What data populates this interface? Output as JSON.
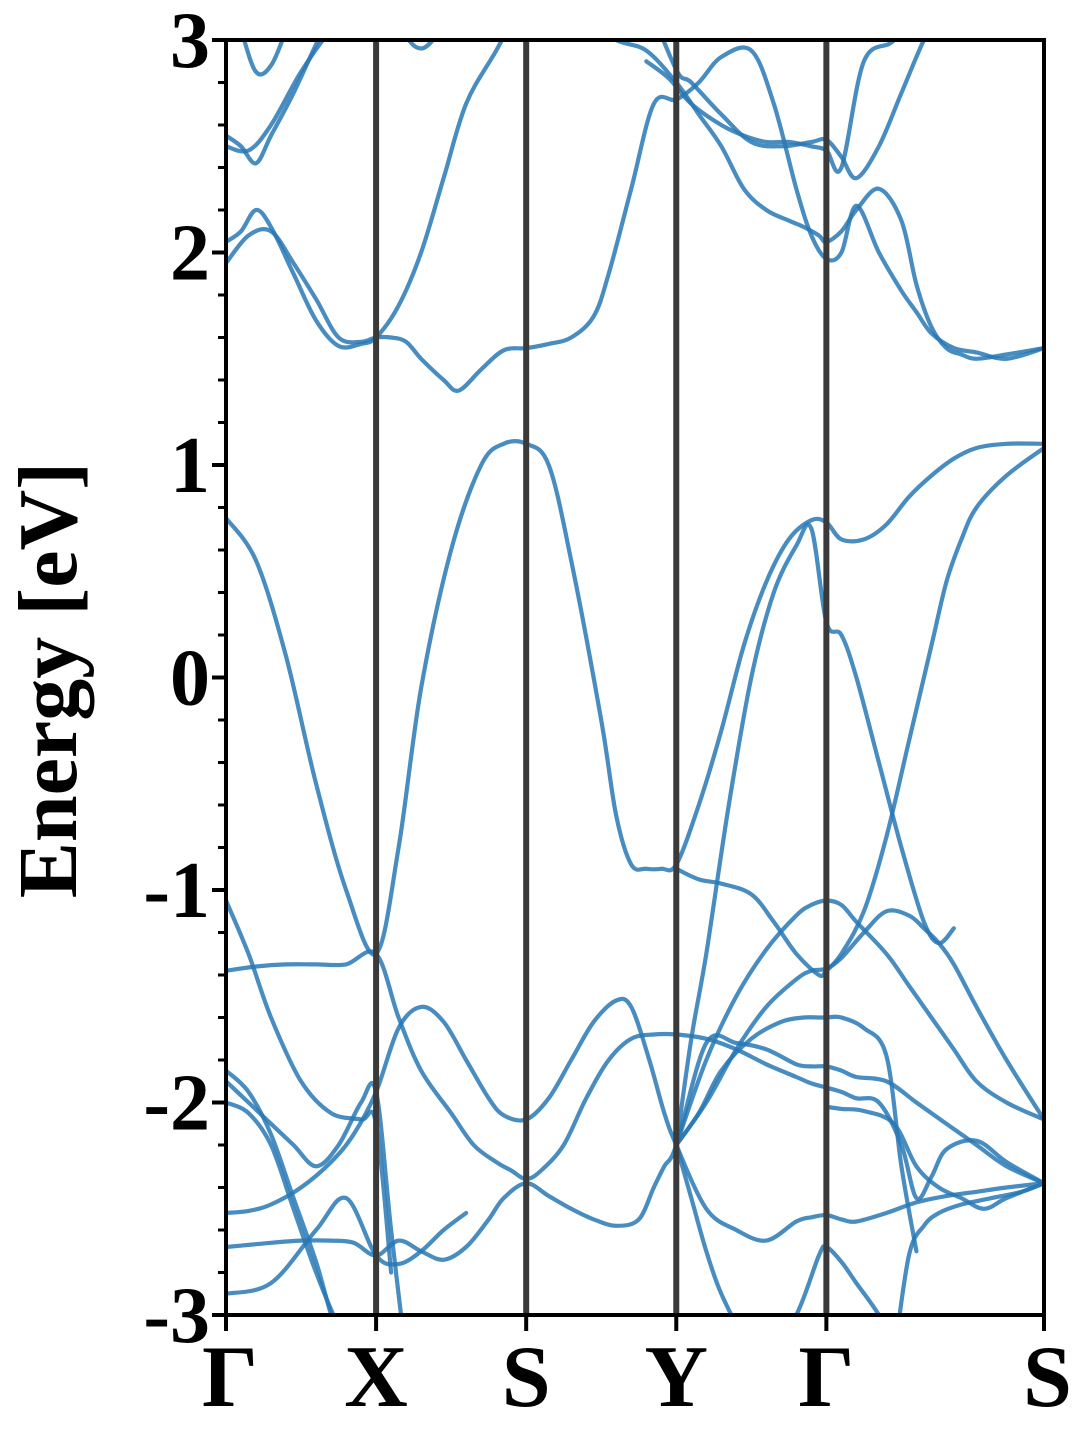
{
  "chart_data": {
    "type": "line",
    "title": "",
    "ylabel": "Energy [eV]",
    "xlabel": "",
    "ylim": [
      -3,
      3
    ],
    "yticks": [
      -3,
      -2,
      -1,
      0,
      1,
      2,
      3
    ],
    "ytick_labels": [
      "-3",
      "-2",
      "-1",
      "0",
      "1",
      "2",
      "3"
    ],
    "minor_yticks_per_major": 5,
    "grid": false,
    "legend": "none",
    "xlim": [
      0,
      5.45
    ],
    "kpoints": [
      {
        "label": "Γ",
        "x": 0
      },
      {
        "label": "X",
        "x": 1.0
      },
      {
        "label": "S",
        "x": 2.0
      },
      {
        "label": "Y",
        "x": 3.0
      },
      {
        "label": "Γ",
        "x": 4.0
      },
      {
        "label": "S",
        "x": 5.45
      }
    ],
    "line_color": "#2878b5",
    "vline_color": "#3a3a3a",
    "series": [
      {
        "x": [
          0,
          0.15,
          0.3,
          0.5,
          0.7,
          0.85,
          1.0,
          1.15,
          1.3,
          1.45,
          1.6,
          1.75,
          1.85,
          2.0,
          2.15,
          2.3,
          2.45,
          2.6,
          2.7,
          2.82,
          2.92,
          3.0,
          3.2,
          3.4,
          3.6,
          3.8,
          3.9,
          4.0,
          4.1,
          4.2,
          4.4,
          4.6,
          4.8,
          5.0,
          5.2,
          5.45
        ],
        "y": [
          -2.52,
          -2.51,
          -2.48,
          -2.4,
          -2.28,
          -2.15,
          -1.95,
          -1.65,
          -1.55,
          -1.62,
          -1.8,
          -1.98,
          -2.06,
          -2.08,
          -1.98,
          -1.8,
          -1.62,
          -1.52,
          -1.55,
          -1.8,
          -2.05,
          -2.2,
          -2.5,
          -2.6,
          -2.65,
          -2.56,
          -2.54,
          -2.53,
          -2.55,
          -2.56,
          -2.52,
          -2.47,
          -2.44,
          -2.42,
          -2.4,
          -2.38
        ]
      },
      {
        "x": [
          0,
          0.15,
          0.3,
          0.5,
          0.7,
          0.85,
          1.0,
          1.15,
          1.3,
          1.45,
          1.6,
          1.75,
          1.85,
          2.0,
          2.15,
          2.3,
          2.45,
          2.6,
          2.75,
          2.85,
          2.92,
          3.0,
          3.2,
          3.4,
          3.6,
          3.8,
          3.9,
          4.0,
          4.1,
          4.2,
          4.4,
          4.6,
          4.8,
          5.0,
          5.2,
          5.45
        ],
        "y": [
          -2.68,
          -2.67,
          -2.66,
          -2.65,
          -2.65,
          -2.66,
          -2.72,
          -2.65,
          -2.7,
          -2.74,
          -2.68,
          -2.55,
          -2.45,
          -2.38,
          -2.44,
          -2.5,
          -2.55,
          -2.58,
          -2.55,
          -2.4,
          -2.3,
          -2.2,
          -1.72,
          -1.72,
          -1.75,
          -1.82,
          -1.83,
          -1.83,
          -1.85,
          -1.88,
          -1.9,
          -2.0,
          -2.1,
          -2.2,
          -2.3,
          -2.38
        ]
      },
      {
        "x": [
          0,
          0.2,
          0.4,
          0.6,
          0.8,
          1.0,
          1.15,
          1.3,
          1.5,
          1.65,
          1.8,
          1.9,
          2.0,
          2.1,
          2.25,
          2.4,
          2.55,
          2.7,
          2.85,
          3.0,
          3.2,
          3.4,
          3.6,
          3.8,
          3.9,
          4.0,
          4.1,
          4.2,
          4.35,
          4.5,
          4.6,
          4.7,
          4.8,
          5.0,
          5.2,
          5.45
        ],
        "y": [
          -1.38,
          -1.36,
          -1.35,
          -1.35,
          -1.35,
          -1.3,
          -1.6,
          -1.85,
          -2.05,
          -2.2,
          -2.28,
          -2.32,
          -2.36,
          -2.32,
          -2.2,
          -1.98,
          -1.8,
          -1.7,
          -1.68,
          -1.68,
          -1.7,
          -1.75,
          -1.82,
          -1.88,
          -1.91,
          -1.93,
          -1.95,
          -1.98,
          -2.0,
          -2.2,
          -2.45,
          -2.35,
          -2.22,
          -2.18,
          -2.28,
          -2.38
        ]
      },
      {
        "x": [
          0,
          0.2,
          0.4,
          0.6,
          0.8,
          1.0,
          1.15,
          1.3,
          1.5,
          1.7,
          1.85,
          2.0,
          2.15,
          2.3,
          2.5,
          2.6,
          2.7,
          2.8,
          2.9,
          3.0,
          3.15,
          3.3,
          3.45,
          3.6,
          3.75,
          3.9,
          4.0,
          4.1,
          4.25,
          4.4,
          4.55,
          4.7,
          4.85,
          5.0,
          5.2,
          5.45
        ],
        "y": [
          0.75,
          0.55,
          0.1,
          -0.5,
          -1.0,
          -1.3,
          -0.8,
          -0.05,
          0.6,
          1.0,
          1.1,
          1.1,
          1.0,
          0.55,
          -0.2,
          -0.65,
          -0.88,
          -0.9,
          -0.9,
          -0.88,
          -0.6,
          -0.25,
          0.15,
          0.45,
          0.65,
          0.74,
          0.73,
          0.65,
          0.65,
          0.72,
          0.85,
          0.95,
          1.03,
          1.08,
          1.1,
          1.1
        ]
      },
      {
        "x": [
          0,
          0.15,
          0.3,
          0.45,
          0.6,
          0.75,
          0.9,
          1.0,
          1.1,
          1.2,
          1.3,
          1.45,
          1.55,
          1.7,
          1.85,
          2.0,
          2.15,
          2.3,
          2.45,
          2.55,
          2.7,
          2.85,
          3.0,
          3.15,
          3.3,
          3.5,
          3.65,
          3.8,
          3.9,
          4.0,
          4.1,
          4.2,
          4.35,
          4.5,
          4.6,
          4.7,
          4.85,
          5.0,
          5.2,
          5.45
        ],
        "y": [
          1.95,
          2.08,
          2.1,
          1.95,
          1.78,
          1.6,
          1.58,
          1.6,
          1.6,
          1.58,
          1.5,
          1.4,
          1.35,
          1.45,
          1.54,
          1.55,
          1.57,
          1.6,
          1.7,
          1.9,
          2.3,
          2.7,
          2.72,
          2.8,
          2.92,
          2.95,
          2.7,
          2.3,
          2.08,
          1.97,
          2.0,
          2.22,
          2.0,
          1.82,
          1.72,
          1.62,
          1.55,
          1.53,
          1.5,
          1.55
        ]
      },
      {
        "x": [
          0,
          0.1,
          0.2,
          0.3,
          0.45,
          0.6,
          0.75,
          0.9,
          1.0,
          1.15,
          1.3,
          1.45,
          1.6,
          1.8,
          2.0,
          2.2,
          2.4,
          2.6,
          2.8,
          3.0,
          3.15,
          3.3,
          3.45,
          3.6,
          3.75,
          3.85,
          3.95,
          4.0,
          4.1,
          4.2,
          4.35,
          4.5,
          4.6,
          4.7,
          4.8,
          4.9,
          5.0,
          5.2,
          5.45
        ],
        "y": [
          2.05,
          2.1,
          2.2,
          2.12,
          1.9,
          1.68,
          1.56,
          1.57,
          1.6,
          1.75,
          2.0,
          2.35,
          2.7,
          2.95,
          3.2,
          3.3,
          3.1,
          3.0,
          2.95,
          2.8,
          2.65,
          2.5,
          2.3,
          2.2,
          2.15,
          2.12,
          2.08,
          2.05,
          2.1,
          2.2,
          2.3,
          2.15,
          1.85,
          1.65,
          1.55,
          1.52,
          1.5,
          1.52,
          1.55
        ]
      },
      {
        "x": [
          0,
          0.15,
          0.3,
          0.5,
          0.7,
          0.9,
          1.1
        ],
        "y": [
          2.5,
          2.48,
          2.6,
          2.85,
          3.05,
          3.2,
          3.3
        ]
      },
      {
        "x": [
          0,
          0.1,
          0.2,
          0.3,
          0.45,
          0.6,
          0.75,
          0.9,
          1.1
        ],
        "y": [
          2.55,
          2.5,
          2.42,
          2.55,
          2.75,
          2.98,
          3.2,
          3.35,
          3.4
        ]
      },
      {
        "x": [
          0,
          0.1,
          0.2,
          0.3,
          0.4,
          0.5
        ],
        "y": [
          3.3,
          3.05,
          2.85,
          2.88,
          3.05,
          3.3
        ]
      },
      {
        "x": [
          1.1,
          1.2,
          1.3,
          1.4,
          1.5
        ],
        "y": [
          3.2,
          3.02,
          2.96,
          3.02,
          3.15
        ]
      },
      {
        "x": [
          2.8,
          3.0,
          3.1,
          3.3,
          3.5,
          3.7,
          3.9,
          4.0,
          4.1,
          4.2,
          4.35,
          4.5,
          4.65,
          4.8
        ],
        "y": [
          3.2,
          2.86,
          2.8,
          2.65,
          2.52,
          2.5,
          2.52,
          2.53,
          2.45,
          2.35,
          2.5,
          2.75,
          3.0,
          3.2
        ]
      },
      {
        "x": [
          2.8,
          2.95,
          3.1,
          3.3,
          3.45,
          3.6,
          3.75,
          3.9,
          4.0,
          4.1,
          4.25,
          4.45,
          4.6
        ],
        "y": [
          2.9,
          2.82,
          2.7,
          2.6,
          2.55,
          2.52,
          2.52,
          2.5,
          2.48,
          2.4,
          2.9,
          3.0,
          3.2
        ]
      },
      {
        "x": [
          0,
          0.15,
          0.3,
          0.5,
          0.7,
          0.9,
          1.0,
          1.1
        ],
        "y": [
          -1.05,
          -1.3,
          -1.6,
          -1.9,
          -2.05,
          -2.08,
          -2.1,
          -2.8
        ]
      },
      {
        "x": [
          0,
          0.15,
          0.3,
          0.45,
          0.6,
          0.75,
          0.9,
          1.0,
          1.15
        ],
        "y": [
          -1.85,
          -1.95,
          -2.15,
          -2.45,
          -2.75,
          -3.1,
          -3.2,
          -3.3,
          -3.35
        ]
      },
      {
        "x": [
          0,
          0.15,
          0.3,
          0.45,
          0.6,
          0.75,
          0.9,
          1.0,
          1.1,
          1.2
        ],
        "y": [
          -1.9,
          -2.0,
          -2.1,
          -2.2,
          -2.3,
          -2.2,
          -2.0,
          -1.95,
          -2.6,
          -3.2
        ]
      },
      {
        "x": [
          0,
          0.15,
          0.3,
          0.45,
          0.6,
          0.75,
          0.9,
          1.0
        ],
        "y": [
          -2.0,
          -2.05,
          -2.2,
          -2.5,
          -2.8,
          -3.05,
          -3.2,
          -3.3
        ]
      },
      {
        "x": [
          0,
          0.3,
          0.6,
          0.8,
          1.0,
          1.15,
          1.3,
          1.45,
          1.6
        ],
        "y": [
          -2.9,
          -2.85,
          -2.6,
          -2.45,
          -2.72,
          -2.76,
          -2.7,
          -2.6,
          -2.52
        ]
      },
      {
        "x": [
          3.0,
          3.2,
          3.4,
          3.6,
          3.8,
          3.9,
          4.0,
          4.1,
          4.2,
          4.4,
          4.55,
          4.7,
          4.85,
          5.0,
          5.2,
          5.45
        ],
        "y": [
          -2.2,
          -1.8,
          -1.5,
          -1.28,
          -1.12,
          -1.07,
          -1.05,
          -1.07,
          -1.15,
          -1.3,
          -1.45,
          -1.6,
          -1.75,
          -1.9,
          -2.0,
          -2.08
        ]
      },
      {
        "x": [
          3.0,
          3.2,
          3.4,
          3.6,
          3.8,
          3.9,
          4.0,
          4.1,
          4.25,
          4.4,
          4.55,
          4.65,
          4.75,
          4.85,
          5.0,
          5.2,
          5.45
        ],
        "y": [
          -2.2,
          -2.0,
          -1.75,
          -1.55,
          -1.42,
          -1.38,
          -1.37,
          -1.32,
          -1.2,
          -1.1,
          -1.12,
          -1.18,
          -1.25,
          -1.35,
          -1.55,
          -1.8,
          -2.08
        ]
      },
      {
        "x": [
          3.0,
          3.15,
          3.3,
          3.5,
          3.65,
          3.8,
          3.95,
          4.0,
          4.1,
          4.25,
          4.4,
          4.55,
          4.7,
          4.8,
          4.9,
          5.0,
          5.2,
          5.45
        ],
        "y": [
          -0.9,
          -0.95,
          -0.97,
          -1.02,
          -1.15,
          -1.3,
          -1.4,
          -1.38,
          -1.3,
          -1.1,
          -0.75,
          -0.3,
          0.15,
          0.45,
          0.65,
          0.8,
          0.95,
          1.08
        ]
      },
      {
        "x": [
          3.0,
          3.1,
          3.2,
          3.35,
          3.5,
          3.65,
          3.8,
          3.9,
          4.0,
          4.1,
          4.2,
          4.35,
          4.5,
          4.65,
          4.75,
          4.85
        ],
        "y": [
          -2.2,
          -1.7,
          -1.3,
          -0.6,
          0.0,
          0.4,
          0.62,
          0.7,
          0.26,
          0.2,
          0.0,
          -0.4,
          -0.8,
          -1.15,
          -1.25,
          -1.18
        ]
      },
      {
        "x": [
          3.0,
          3.1,
          3.2,
          3.3,
          3.45,
          3.6,
          3.8,
          3.95,
          4.0,
          4.1,
          4.2,
          4.35,
          4.5
        ],
        "y": [
          -2.2,
          -2.45,
          -2.7,
          -2.9,
          -3.1,
          -3.2,
          -3.0,
          -2.72,
          -2.68,
          -2.75,
          -2.85,
          -3.0,
          -3.2
        ]
      },
      {
        "x": [
          3.0,
          3.15,
          3.3,
          3.5,
          3.7,
          3.85,
          3.95,
          4.0,
          4.1,
          4.25,
          4.4,
          4.5,
          4.6
        ],
        "y": [
          -2.2,
          -2.05,
          -1.85,
          -1.7,
          -1.62,
          -1.6,
          -1.6,
          -1.6,
          -1.6,
          -1.65,
          -1.78,
          -2.3,
          -2.7
        ]
      },
      {
        "x": [
          4.0,
          4.1,
          4.25,
          4.45,
          4.6,
          4.75,
          4.9,
          5.05,
          5.2,
          5.45
        ],
        "y": [
          -2.02,
          -2.03,
          -2.04,
          -2.1,
          -2.3,
          -2.4,
          -2.45,
          -2.5,
          -2.45,
          -2.38
        ]
      },
      {
        "x": [
          4.45,
          4.55,
          4.65,
          4.75,
          4.9,
          5.1,
          5.3,
          5.45
        ],
        "y": [
          -3.2,
          -2.72,
          -2.58,
          -2.52,
          -2.48,
          -2.45,
          -2.42,
          -2.38
        ]
      }
    ]
  }
}
